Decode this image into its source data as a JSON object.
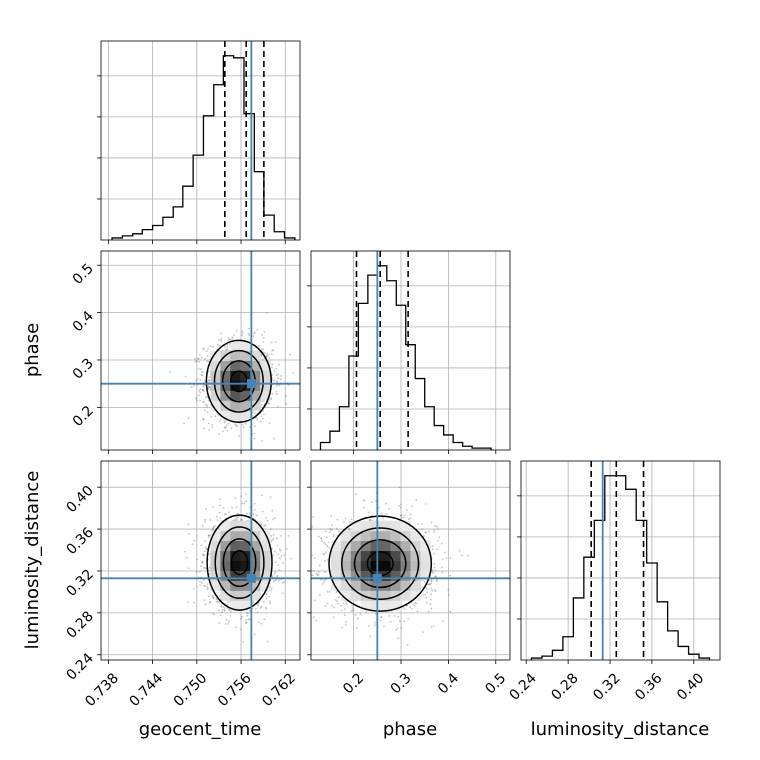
{
  "chart_data": {
    "type": "corner",
    "parameters": [
      "geocent_time",
      "phase",
      "luminosity_distance"
    ],
    "truths": {
      "geocent_time": 0.7574,
      "phase": 0.25,
      "luminosity_distance": 0.313
    },
    "colors": {
      "truth": "#4682b4",
      "hist": "#000000",
      "grid": "#b0b0b0"
    },
    "axes": {
      "geocent_time": {
        "range": [
          0.737,
          0.764
        ],
        "ticks": [
          0.738,
          0.744,
          0.75,
          0.756,
          0.762
        ],
        "tick_labels": [
          "0.738",
          "0.744",
          "0.750",
          "0.756",
          "0.762"
        ]
      },
      "phase": {
        "range": [
          0.11,
          0.53
        ],
        "ticks": [
          0.2,
          0.3,
          0.4,
          0.5
        ],
        "tick_labels": [
          "0.2",
          "0.3",
          "0.4",
          "0.5"
        ]
      },
      "luminosity_distance": {
        "range": [
          0.235,
          0.425
        ],
        "ticks": [
          0.24,
          0.28,
          0.32,
          0.36,
          0.4
        ],
        "tick_labels": [
          "0.24",
          "0.28",
          "0.32",
          "0.36",
          "0.40"
        ]
      }
    },
    "histograms": {
      "geocent_time": {
        "edges": [
          0.7385,
          0.7399,
          0.7413,
          0.7426,
          0.744,
          0.7454,
          0.7468,
          0.7481,
          0.7495,
          0.7509,
          0.7523,
          0.7536,
          0.755,
          0.7564,
          0.7578,
          0.7591,
          0.7605,
          0.7619,
          0.7633
        ],
        "counts": [
          1,
          2,
          3,
          5,
          7,
          11,
          16,
          26,
          41,
          60,
          75,
          89,
          88,
          61,
          33,
          12,
          4,
          1
        ],
        "quantiles": [
          0.7538,
          0.7567,
          0.7591
        ]
      },
      "phase": {
        "edges": [
          0.13,
          0.15,
          0.17,
          0.19,
          0.21,
          0.23,
          0.25,
          0.27,
          0.29,
          0.31,
          0.33,
          0.35,
          0.37,
          0.39,
          0.41,
          0.43,
          0.45,
          0.47,
          0.49
        ],
        "counts": [
          4,
          10,
          23,
          50,
          78,
          93,
          98,
          90,
          77,
          56,
          38,
          23,
          13,
          8,
          4,
          2,
          1,
          1
        ],
        "quantiles": [
          0.206,
          0.256,
          0.315
        ]
      },
      "luminosity_distance": {
        "edges": [
          0.245,
          0.255,
          0.265,
          0.275,
          0.285,
          0.295,
          0.305,
          0.315,
          0.325,
          0.335,
          0.345,
          0.355,
          0.365,
          0.375,
          0.385,
          0.395,
          0.405,
          0.415
        ],
        "counts": [
          1,
          2,
          5,
          12,
          32,
          53,
          72,
          95,
          95,
          88,
          72,
          50,
          30,
          15,
          7,
          3,
          1
        ],
        "quantiles": [
          0.302,
          0.326,
          0.352
        ]
      }
    },
    "density_2d": [
      {
        "x": "geocent_time",
        "y": "phase",
        "center": [
          0.7557,
          0.255
        ],
        "spread": [
          0.0022,
          0.04
        ]
      },
      {
        "x": "geocent_time",
        "y": "luminosity_distance",
        "center": [
          0.7558,
          0.328
        ],
        "spread": [
          0.0022,
          0.021
        ]
      },
      {
        "x": "phase",
        "y": "luminosity_distance",
        "center": [
          0.256,
          0.327
        ],
        "spread": [
          0.054,
          0.021
        ]
      }
    ]
  }
}
